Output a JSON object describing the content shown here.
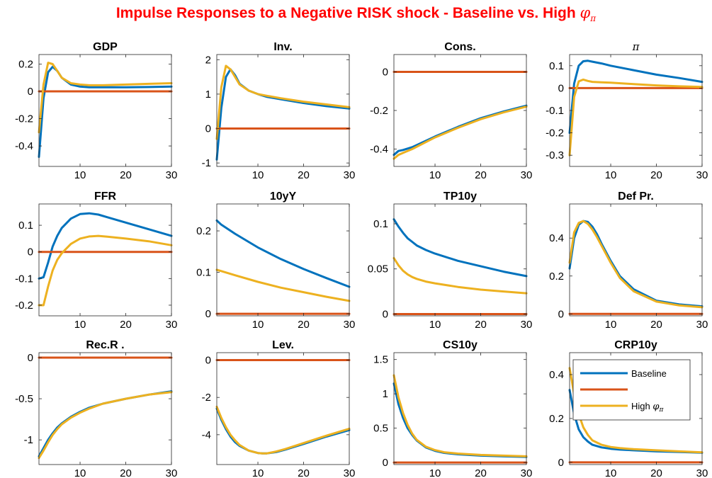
{
  "title": {
    "text": "Impulse Responses to a Negative RISK shock - Baseline vs. High",
    "symbol": "φ",
    "subscript": "π"
  },
  "colors": {
    "baseline": "#0072BD",
    "zero": "#D95319",
    "high": "#EDB120"
  },
  "chart_data": [
    {
      "type": "line",
      "title": "GDP",
      "xlim": [
        1,
        30
      ],
      "xticks": [
        10,
        20,
        30
      ],
      "ylim": [
        -0.55,
        0.27
      ],
      "yticks": [
        -0.4,
        -0.2,
        0,
        0.2
      ],
      "yticklabels": [
        "-0.4",
        "-0.2",
        "0",
        "0.2"
      ],
      "series": [
        {
          "name": "Baseline",
          "x": [
            1,
            2,
            3,
            4,
            5,
            6,
            8,
            10,
            12,
            15,
            20,
            25,
            30
          ],
          "y": [
            -0.48,
            -0.05,
            0.14,
            0.18,
            0.15,
            0.1,
            0.05,
            0.035,
            0.03,
            0.03,
            0.03,
            0.032,
            0.035
          ]
        },
        {
          "x": [
            1,
            30
          ],
          "y": [
            0,
            0
          ]
        },
        {
          "name": "High φπ",
          "x": [
            1,
            2,
            3,
            4,
            5,
            6,
            8,
            10,
            12,
            15,
            20,
            25,
            30
          ],
          "y": [
            -0.3,
            0.05,
            0.21,
            0.2,
            0.15,
            0.1,
            0.06,
            0.05,
            0.045,
            0.045,
            0.05,
            0.055,
            0.06
          ]
        }
      ]
    },
    {
      "type": "line",
      "title": "Inv.",
      "xlim": [
        1,
        30
      ],
      "xticks": [
        10,
        20,
        30
      ],
      "ylim": [
        -1.1,
        2.15
      ],
      "yticks": [
        -1,
        0,
        1,
        2
      ],
      "yticklabels": [
        "-1",
        "0",
        "1",
        "2"
      ],
      "series": [
        {
          "name": "Baseline",
          "x": [
            1,
            2,
            3,
            4,
            5,
            6,
            8,
            10,
            12,
            15,
            20,
            25,
            30
          ],
          "y": [
            -0.9,
            0.6,
            1.5,
            1.72,
            1.55,
            1.3,
            1.1,
            1.0,
            0.92,
            0.85,
            0.74,
            0.65,
            0.58
          ]
        },
        {
          "x": [
            1,
            30
          ],
          "y": [
            0,
            0
          ]
        },
        {
          "name": "High φπ",
          "x": [
            1,
            2,
            3,
            4,
            5,
            6,
            8,
            10,
            12,
            15,
            20,
            25,
            30
          ],
          "y": [
            -0.3,
            1.2,
            1.82,
            1.72,
            1.5,
            1.28,
            1.1,
            1.0,
            0.95,
            0.88,
            0.78,
            0.7,
            0.62
          ]
        }
      ]
    },
    {
      "type": "line",
      "title": "Cons.",
      "xlim": [
        1,
        30
      ],
      "xticks": [
        10,
        20,
        30
      ],
      "ylim": [
        -0.49,
        0.09
      ],
      "yticks": [
        -0.4,
        -0.2,
        0
      ],
      "yticklabels": [
        "-0.4",
        "-0.2",
        "0"
      ],
      "series": [
        {
          "name": "Baseline",
          "x": [
            1,
            2,
            3,
            5,
            10,
            15,
            20,
            25,
            30
          ],
          "y": [
            -0.43,
            -0.41,
            -0.405,
            -0.39,
            -0.335,
            -0.285,
            -0.24,
            -0.205,
            -0.175
          ]
        },
        {
          "x": [
            1,
            30
          ],
          "y": [
            0,
            0
          ]
        },
        {
          "name": "High φπ",
          "x": [
            1,
            2,
            3,
            5,
            10,
            15,
            20,
            25,
            30
          ],
          "y": [
            -0.45,
            -0.43,
            -0.42,
            -0.4,
            -0.34,
            -0.29,
            -0.245,
            -0.21,
            -0.18
          ]
        }
      ]
    },
    {
      "type": "line",
      "title": "π",
      "xlim": [
        1,
        30
      ],
      "xticks": [
        10,
        20,
        30
      ],
      "ylim": [
        -0.35,
        0.15
      ],
      "yticks": [
        -0.3,
        -0.2,
        -0.1,
        0,
        0.1
      ],
      "yticklabels": [
        "-0.3",
        "-0.2",
        "-0.1",
        "0",
        "0.1"
      ],
      "series": [
        {
          "name": "Baseline",
          "x": [
            1,
            2,
            3,
            4,
            5,
            6,
            8,
            10,
            15,
            20,
            25,
            30
          ],
          "y": [
            -0.2,
            0.02,
            0.1,
            0.12,
            0.122,
            0.118,
            0.11,
            0.1,
            0.08,
            0.06,
            0.045,
            0.028
          ]
        },
        {
          "x": [
            1,
            30
          ],
          "y": [
            0,
            0
          ]
        },
        {
          "name": "High φπ",
          "x": [
            1,
            2,
            3,
            4,
            5,
            6,
            8,
            10,
            15,
            20,
            25,
            30
          ],
          "y": [
            -0.3,
            -0.04,
            0.03,
            0.038,
            0.032,
            0.028,
            0.026,
            0.024,
            0.018,
            0.012,
            0.008,
            0.005
          ]
        }
      ]
    },
    {
      "type": "line",
      "title": "FFR",
      "xlim": [
        1,
        30
      ],
      "xticks": [
        10,
        20,
        30
      ],
      "ylim": [
        -0.24,
        0.18
      ],
      "yticks": [
        -0.2,
        -0.1,
        0,
        0.1
      ],
      "yticklabels": [
        "-0.2",
        "-0.1",
        "0",
        "0.1"
      ],
      "series": [
        {
          "name": "Baseline",
          "x": [
            1,
            2,
            3,
            4,
            5,
            6,
            8,
            10,
            12,
            14,
            16,
            20,
            25,
            30
          ],
          "y": [
            -0.1,
            -0.095,
            -0.04,
            0.02,
            0.06,
            0.09,
            0.125,
            0.142,
            0.145,
            0.14,
            0.13,
            0.11,
            0.085,
            0.06
          ]
        },
        {
          "x": [
            1,
            30
          ],
          "y": [
            0,
            0
          ]
        },
        {
          "name": "High φπ",
          "x": [
            1,
            2,
            3,
            4,
            5,
            6,
            8,
            10,
            12,
            14,
            16,
            20,
            25,
            30
          ],
          "y": [
            -0.2,
            -0.2,
            -0.13,
            -0.07,
            -0.03,
            -0.005,
            0.03,
            0.05,
            0.058,
            0.06,
            0.057,
            0.05,
            0.04,
            0.025
          ]
        }
      ]
    },
    {
      "type": "line",
      "title": "10yY",
      "xlim": [
        1,
        30
      ],
      "xticks": [
        10,
        20,
        30
      ],
      "ylim": [
        -0.005,
        0.265
      ],
      "yticks": [
        0,
        0.1,
        0.2
      ],
      "yticklabels": [
        "0",
        "0.1",
        "0.2"
      ],
      "series": [
        {
          "name": "Baseline",
          "x": [
            1,
            2,
            5,
            10,
            15,
            20,
            25,
            30
          ],
          "y": [
            0.225,
            0.215,
            0.193,
            0.16,
            0.132,
            0.108,
            0.086,
            0.065
          ]
        },
        {
          "x": [
            1,
            30
          ],
          "y": [
            0,
            0
          ]
        },
        {
          "name": "High φπ",
          "x": [
            1,
            2,
            5,
            10,
            15,
            20,
            25,
            30
          ],
          "y": [
            0.106,
            0.103,
            0.093,
            0.077,
            0.063,
            0.052,
            0.041,
            0.031
          ]
        }
      ]
    },
    {
      "type": "line",
      "title": "TP10y",
      "xlim": [
        1,
        30
      ],
      "xticks": [
        10,
        20,
        30
      ],
      "ylim": [
        -0.002,
        0.122
      ],
      "yticks": [
        0,
        0.05,
        0.1
      ],
      "yticklabels": [
        "0",
        "0.05",
        "0.1"
      ],
      "series": [
        {
          "name": "Baseline",
          "x": [
            1,
            2,
            3,
            4,
            5,
            6,
            8,
            10,
            15,
            20,
            25,
            30
          ],
          "y": [
            0.105,
            0.097,
            0.09,
            0.084,
            0.08,
            0.076,
            0.071,
            0.067,
            0.059,
            0.053,
            0.047,
            0.042
          ]
        },
        {
          "x": [
            1,
            30
          ],
          "y": [
            0,
            0
          ]
        },
        {
          "name": "High φπ",
          "x": [
            1,
            2,
            3,
            4,
            5,
            6,
            8,
            10,
            15,
            20,
            25,
            30
          ],
          "y": [
            0.062,
            0.054,
            0.048,
            0.044,
            0.041,
            0.039,
            0.036,
            0.034,
            0.03,
            0.027,
            0.025,
            0.023
          ]
        }
      ]
    },
    {
      "type": "line",
      "title": "Def Pr.",
      "xlim": [
        1,
        30
      ],
      "xticks": [
        10,
        20,
        30
      ],
      "ylim": [
        -0.01,
        0.58
      ],
      "yticks": [
        0,
        0.2,
        0.4
      ],
      "yticklabels": [
        "0",
        "0.2",
        "0.4"
      ],
      "series": [
        {
          "name": "Baseline",
          "x": [
            1,
            2,
            3,
            4,
            5,
            6,
            7,
            8,
            10,
            12,
            15,
            20,
            25,
            30
          ],
          "y": [
            0.24,
            0.4,
            0.47,
            0.49,
            0.485,
            0.46,
            0.42,
            0.37,
            0.28,
            0.2,
            0.13,
            0.07,
            0.05,
            0.04
          ]
        },
        {
          "x": [
            1,
            30
          ],
          "y": [
            0,
            0
          ]
        },
        {
          "name": "High φπ",
          "x": [
            1,
            2,
            3,
            4,
            5,
            6,
            7,
            8,
            10,
            12,
            15,
            20,
            25,
            30
          ],
          "y": [
            0.27,
            0.43,
            0.48,
            0.49,
            0.475,
            0.445,
            0.405,
            0.36,
            0.27,
            0.19,
            0.12,
            0.065,
            0.045,
            0.035
          ]
        }
      ]
    },
    {
      "type": "line",
      "title": "Rec.R .",
      "xlim": [
        1,
        30
      ],
      "xticks": [
        10,
        20,
        30
      ],
      "ylim": [
        -1.3,
        0.06
      ],
      "yticks": [
        -1,
        -0.5,
        0
      ],
      "yticklabels": [
        "-1",
        "-0.5",
        "0"
      ],
      "series": [
        {
          "name": "Baseline",
          "x": [
            1,
            2,
            3,
            4,
            5,
            6,
            8,
            10,
            12,
            15,
            20,
            25,
            30
          ],
          "y": [
            -1.2,
            -1.1,
            -1.0,
            -0.92,
            -0.85,
            -0.8,
            -0.72,
            -0.66,
            -0.61,
            -0.56,
            -0.5,
            -0.45,
            -0.41
          ]
        },
        {
          "x": [
            1,
            30
          ],
          "y": [
            0,
            0
          ]
        },
        {
          "name": "High φπ",
          "x": [
            1,
            2,
            3,
            4,
            5,
            6,
            8,
            10,
            12,
            15,
            20,
            25,
            30
          ],
          "y": [
            -1.22,
            -1.13,
            -1.03,
            -0.94,
            -0.87,
            -0.81,
            -0.73,
            -0.67,
            -0.62,
            -0.56,
            -0.5,
            -0.45,
            -0.42
          ]
        }
      ]
    },
    {
      "type": "line",
      "title": "Lev.",
      "xlim": [
        1,
        30
      ],
      "xticks": [
        10,
        20,
        30
      ],
      "ylim": [
        -5.6,
        0.4
      ],
      "yticks": [
        -4,
        -2,
        0
      ],
      "yticklabels": [
        "-4",
        "-2",
        "0"
      ],
      "series": [
        {
          "name": "Baseline",
          "x": [
            1,
            2,
            3,
            4,
            5,
            6,
            8,
            10,
            11,
            12,
            14,
            16,
            20,
            25,
            30
          ],
          "y": [
            -2.6,
            -3.2,
            -3.7,
            -4.1,
            -4.4,
            -4.6,
            -4.85,
            -4.98,
            -5.0,
            -5.0,
            -4.93,
            -4.8,
            -4.5,
            -4.1,
            -3.75
          ]
        },
        {
          "x": [
            1,
            30
          ],
          "y": [
            0,
            0
          ]
        },
        {
          "name": "High φπ",
          "x": [
            1,
            2,
            3,
            4,
            5,
            6,
            8,
            10,
            11,
            12,
            14,
            16,
            20,
            25,
            30
          ],
          "y": [
            -2.5,
            -3.1,
            -3.6,
            -4.0,
            -4.3,
            -4.55,
            -4.85,
            -4.98,
            -5.0,
            -5.0,
            -4.9,
            -4.77,
            -4.45,
            -4.05,
            -3.68
          ]
        }
      ]
    },
    {
      "type": "line",
      "title": "CS10y",
      "xlim": [
        1,
        30
      ],
      "xticks": [
        10,
        20,
        30
      ],
      "ylim": [
        -0.03,
        1.6
      ],
      "yticks": [
        0,
        0.5,
        1,
        1.5
      ],
      "yticklabels": [
        "0",
        "0.5",
        "1",
        "1.5"
      ],
      "series": [
        {
          "name": "Baseline",
          "x": [
            1,
            2,
            3,
            4,
            5,
            6,
            8,
            10,
            12,
            15,
            20,
            25,
            30
          ],
          "y": [
            1.15,
            0.85,
            0.65,
            0.5,
            0.4,
            0.32,
            0.22,
            0.17,
            0.14,
            0.12,
            0.1,
            0.09,
            0.08
          ]
        },
        {
          "x": [
            1,
            30
          ],
          "y": [
            0,
            0
          ]
        },
        {
          "name": "High φπ",
          "x": [
            1,
            2,
            3,
            4,
            5,
            6,
            8,
            10,
            12,
            15,
            20,
            25,
            30
          ],
          "y": [
            1.27,
            0.95,
            0.72,
            0.55,
            0.42,
            0.33,
            0.23,
            0.18,
            0.15,
            0.13,
            0.11,
            0.1,
            0.09
          ]
        }
      ]
    },
    {
      "type": "line",
      "title": "CRP10y",
      "xlim": [
        1,
        30
      ],
      "xticks": [
        10,
        20,
        30
      ],
      "ylim": [
        -0.01,
        0.5
      ],
      "yticks": [
        0,
        0.2,
        0.4
      ],
      "yticklabels": [
        "0",
        "0.2",
        "0.4"
      ],
      "legend": {
        "location": "top-right",
        "entries": [
          "Baseline",
          "",
          "High φπ"
        ]
      },
      "series": [
        {
          "name": "Baseline",
          "x": [
            1,
            2,
            3,
            4,
            5,
            6,
            8,
            10,
            12,
            15,
            20,
            25,
            30
          ],
          "y": [
            0.33,
            0.22,
            0.15,
            0.115,
            0.095,
            0.08,
            0.068,
            0.062,
            0.058,
            0.055,
            0.05,
            0.047,
            0.044
          ]
        },
        {
          "x": [
            1,
            30
          ],
          "y": [
            0,
            0
          ]
        },
        {
          "name": "High φπ",
          "x": [
            1,
            2,
            3,
            4,
            5,
            6,
            8,
            10,
            12,
            15,
            20,
            25,
            30
          ],
          "y": [
            0.43,
            0.31,
            0.22,
            0.16,
            0.125,
            0.1,
            0.08,
            0.07,
            0.065,
            0.06,
            0.055,
            0.05,
            0.046
          ]
        }
      ]
    }
  ]
}
